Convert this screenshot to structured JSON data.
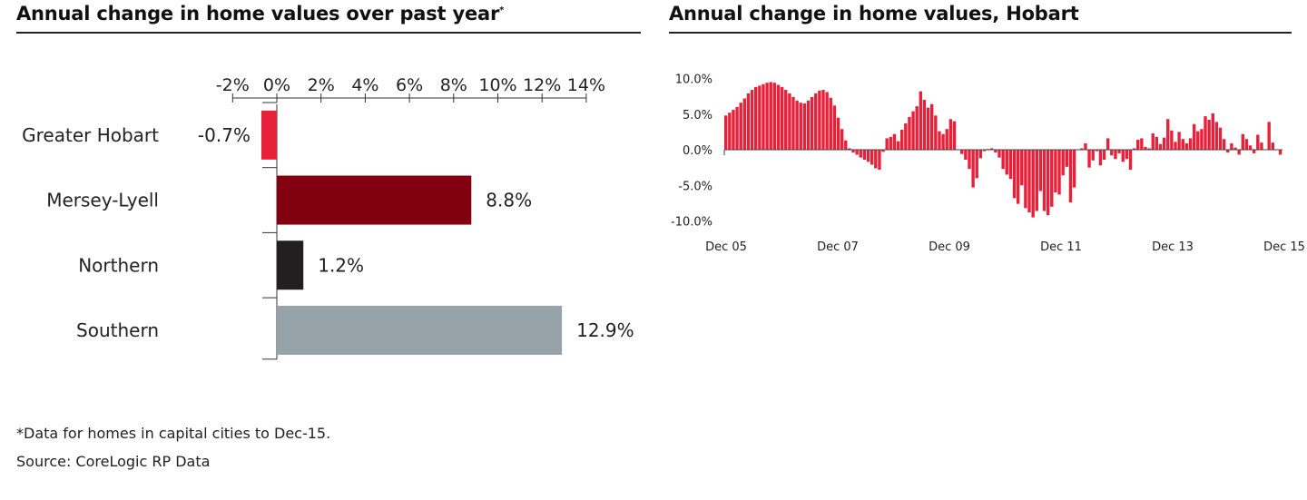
{
  "left_panel": {
    "title": "Annual change in home values over past year",
    "title_marker": "*"
  },
  "right_panel": {
    "title": "Annual change in home values, Hobart"
  },
  "footnotes": {
    "note": "*Data for homes in capital cities to Dec-15.",
    "source": "Source: CoreLogic RP Data"
  },
  "chart_data": [
    {
      "type": "bar",
      "orientation": "horizontal",
      "title": "Annual change in home values over past year*",
      "categories": [
        "Greater Hobart",
        "Mersey-Lyell",
        "Northern",
        "Southern"
      ],
      "values": [
        -0.7,
        8.8,
        1.2,
        12.9
      ],
      "value_labels": [
        "-0.7%",
        "8.8%",
        "1.2%",
        "12.9%"
      ],
      "colors": [
        "#e8203a",
        "#82000f",
        "#231f20",
        "#96a3a9"
      ],
      "xlim": [
        -2,
        14
      ],
      "xticks": [
        -2,
        0,
        2,
        4,
        6,
        8,
        10,
        12,
        14
      ],
      "xtick_labels": [
        "-2%",
        "0%",
        "2%",
        "4%",
        "6%",
        "8%",
        "10%",
        "12%",
        "14%"
      ],
      "xaxis_position": "top",
      "grid": false,
      "legend": "none"
    },
    {
      "type": "bar",
      "title": "Annual change in home values, Hobart",
      "frequency": "monthly",
      "x_start": "Dec 05",
      "x_end": "Dec 15",
      "xtick_labels": [
        "Dec 05",
        "Dec 07",
        "Dec 09",
        "Dec 11",
        "Dec 13",
        "Dec 15"
      ],
      "ylim": [
        -10,
        10
      ],
      "yticks": [
        10,
        5,
        0,
        -5,
        -10
      ],
      "ytick_labels": [
        "10.0%",
        "5.0%",
        "0.0%",
        "-5.0%",
        "-10.0%"
      ],
      "color": "#e8203a",
      "grid": false,
      "legend": "none",
      "values": [
        4.8,
        5.2,
        5.6,
        6.0,
        6.6,
        7.2,
        7.9,
        8.4,
        8.8,
        9.0,
        9.2,
        9.4,
        9.5,
        9.4,
        9.1,
        8.8,
        8.4,
        7.9,
        7.4,
        6.9,
        6.6,
        6.5,
        6.9,
        7.4,
        7.9,
        8.3,
        8.4,
        8.1,
        7.3,
        6.2,
        4.5,
        2.9,
        1.3,
        0.2,
        -0.4,
        -0.7,
        -1.1,
        -1.4,
        -1.7,
        -2.1,
        -2.6,
        -2.8,
        -0.3,
        1.6,
        1.8,
        2.2,
        1.2,
        2.8,
        3.7,
        4.6,
        5.4,
        6.1,
        8.2,
        7.0,
        5.9,
        6.4,
        4.8,
        2.6,
        2.2,
        2.9,
        4.3,
        4.0,
        0.0,
        -0.6,
        -1.4,
        -2.7,
        -5.3,
        -4.0,
        -1.2,
        -0.2,
        0.1,
        0.2,
        -0.4,
        -1.1,
        -2.7,
        -3.5,
        -4.1,
        -6.8,
        -7.6,
        -5.0,
        -8.2,
        -8.8,
        -9.5,
        -8.6,
        -5.8,
        -8.6,
        -9.2,
        -8.0,
        -6.0,
        -6.3,
        -3.6,
        -2.4,
        -7.4,
        -5.3,
        0.0,
        0.2,
        0.9,
        -2.5,
        -1.5,
        -0.2,
        -2.2,
        -1.4,
        1.6,
        -0.8,
        -1.3,
        -0.5,
        -1.7,
        -1.3,
        -2.8,
        0.2,
        1.4,
        1.6,
        0.4,
        0.2,
        2.3,
        1.8,
        0.8,
        1.7,
        4.3,
        2.7,
        1.1,
        2.5,
        1.5,
        0.9,
        1.6,
        3.6,
        2.6,
        2.9,
        4.7,
        4.2,
        5.1,
        3.9,
        3.1,
        1.5,
        -0.4,
        0.9,
        0.3,
        -0.7,
        2.2,
        1.5,
        0.6,
        -0.5,
        2.1,
        1.0,
        0.0,
        3.9,
        1.0,
        0.0,
        -0.7
      ]
    }
  ]
}
